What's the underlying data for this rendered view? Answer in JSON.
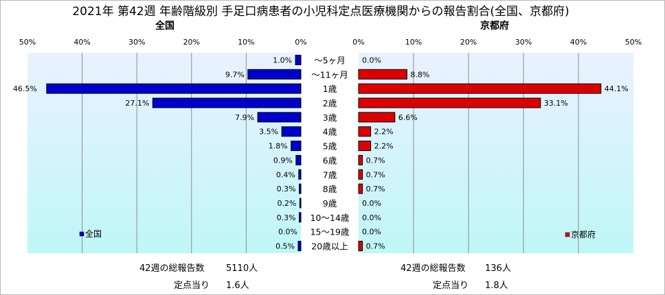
{
  "title": "2021年 第42週 年齢階級別 手足口病患者の小児科定点医療機関からの報告割合(全国、京都府)",
  "colors": {
    "national": "#0000cc",
    "kyoto": "#dd0000",
    "plot_top": "#eaf1ff",
    "plot_bottom": "#bff7f7"
  },
  "chart_data": [
    {
      "type": "bar",
      "orientation": "horizontal",
      "title": "全国",
      "direction": "right-to-left",
      "xlim": [
        0,
        50
      ],
      "ticks": [
        "50%",
        "40%",
        "30%",
        "20%",
        "10%",
        "0%"
      ],
      "categories": [
        "～5ヶ月",
        "～11ヶ月",
        "1歳",
        "2歳",
        "3歳",
        "4歳",
        "5歳",
        "6歳",
        "7歳",
        "8歳",
        "9歳",
        "10～14歳",
        "15～19歳",
        "20歳以上"
      ],
      "series": [
        {
          "name": "全国",
          "values": [
            1.0,
            9.7,
            46.5,
            27.1,
            7.9,
            3.5,
            1.8,
            0.9,
            0.4,
            0.3,
            0.2,
            0.3,
            0.0,
            0.5
          ]
        }
      ],
      "data_labels": [
        "1.0%",
        "9.7%",
        "46.5%",
        "27.1%",
        "7.9%",
        "3.5%",
        "1.8%",
        "0.9%",
        "0.4%",
        "0.3%",
        "0.2%",
        "0.3%",
        "0.0%",
        "0.5%"
      ],
      "legend": "bottom-left",
      "grid": true
    },
    {
      "type": "bar",
      "orientation": "horizontal",
      "title": "京都府",
      "direction": "left-to-right",
      "xlim": [
        0,
        50
      ],
      "ticks": [
        "0%",
        "10%",
        "20%",
        "30%",
        "40%",
        "50%"
      ],
      "categories": [
        "～5ヶ月",
        "～11ヶ月",
        "1歳",
        "2歳",
        "3歳",
        "4歳",
        "5歳",
        "6歳",
        "7歳",
        "8歳",
        "9歳",
        "10～14歳",
        "15～19歳",
        "20歳以上"
      ],
      "series": [
        {
          "name": "京都府",
          "values": [
            0.0,
            8.8,
            44.1,
            33.1,
            6.6,
            2.2,
            2.2,
            0.7,
            0.7,
            0.7,
            0.0,
            0.0,
            0.0,
            0.7
          ]
        }
      ],
      "data_labels": [
        "0.0%",
        "8.8%",
        "44.1%",
        "33.1%",
        "6.6%",
        "2.2%",
        "2.2%",
        "0.7%",
        "0.7%",
        "0.7%",
        "0.0%",
        "0.0%",
        "0.0%",
        "0.7%"
      ],
      "legend": "bottom-right",
      "grid": true
    }
  ],
  "footer": {
    "national": {
      "total_label": "42週の総報告数",
      "total_value": "5110人",
      "per_label": "定点当り",
      "per_value": "1.6人"
    },
    "kyoto": {
      "total_label": "42週の総報告数",
      "total_value": "136人",
      "per_label": "定点当り",
      "per_value": "1.8人"
    }
  }
}
